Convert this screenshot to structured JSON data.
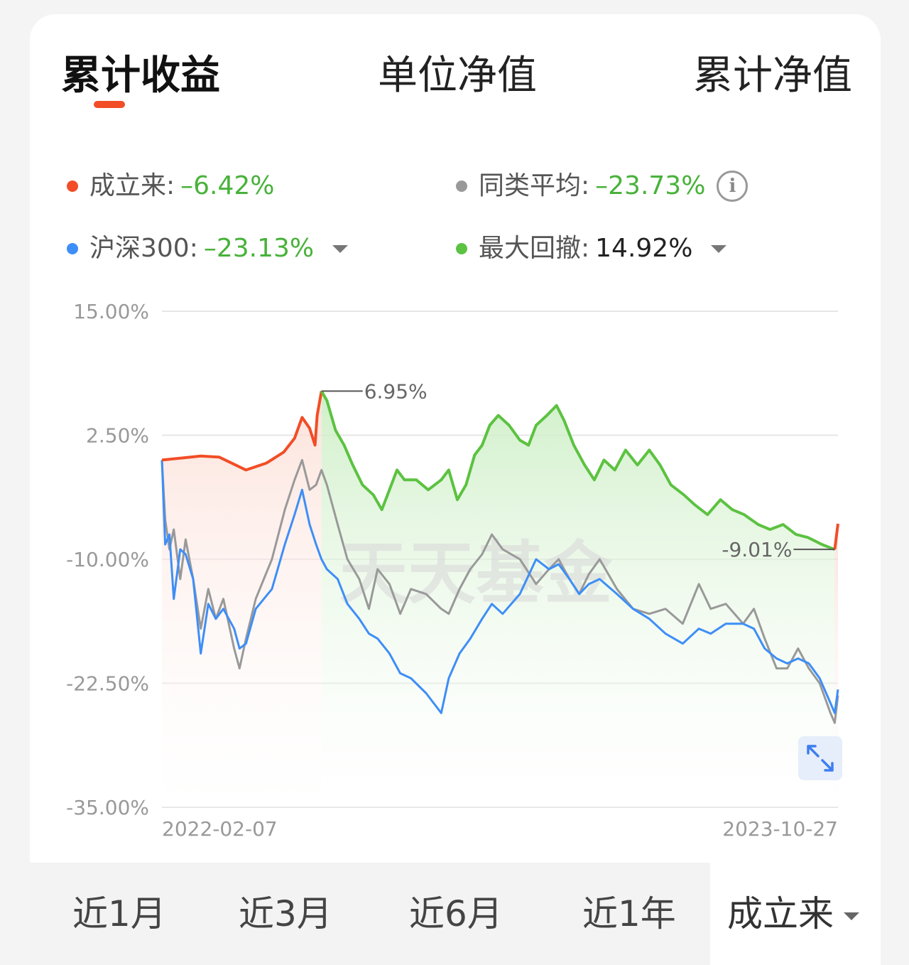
{
  "tabs": [
    {
      "label": "累计收益",
      "active": true
    },
    {
      "label": "单位净值",
      "active": false
    },
    {
      "label": "累计净值",
      "active": false
    }
  ],
  "legend": {
    "fund": {
      "label": "成立来:",
      "value": "–6.42%",
      "color": "#f24d26"
    },
    "peer": {
      "label": "同类平均:",
      "value": "–23.73%",
      "color": "#999999",
      "icon": "info-icon"
    },
    "index": {
      "label": "沪深300:",
      "value": "–23.13%",
      "color": "#3e8ef7",
      "icon": "caret-down-icon"
    },
    "drawdown": {
      "label": "最大回撤:",
      "value": "14.92%",
      "color": "#5cc241",
      "icon": "caret-down-icon"
    }
  },
  "watermark": "天天基金",
  "expand_icon": "expand-icon",
  "range": {
    "options": [
      "近1月",
      "近3月",
      "近6月",
      "近1年"
    ],
    "selected": "成立来",
    "icon": "caret-down-icon"
  },
  "chart_data": {
    "type": "line",
    "y_ticks": [
      "15.00%",
      "2.50%",
      "-10.00%",
      "-22.50%",
      "-35.00%"
    ],
    "ylim": [
      -35,
      15
    ],
    "x_labels": [
      "2022-02-07",
      "2023-10-27"
    ],
    "xlim": [
      "2022-02-07",
      "2023-10-27"
    ],
    "grid": true,
    "annotations": [
      {
        "text": "6.95%",
        "date": "2022-07-05",
        "value": 6.95
      },
      {
        "text": "-9.01%",
        "date": "2023-10-24",
        "value": -9.01
      }
    ],
    "drawdown_period": {
      "start": "2022-07-05",
      "end": "2023-10-24"
    },
    "series": [
      {
        "key": "fund",
        "color": "#f24d26",
        "drawdown_color": "#5cc241",
        "points": [
          [
            "2022-02-07",
            0
          ],
          [
            "2022-02-25",
            0.2
          ],
          [
            "2022-03-15",
            0.4
          ],
          [
            "2022-04-01",
            0.3
          ],
          [
            "2022-04-26",
            -1.0
          ],
          [
            "2022-05-15",
            -0.3
          ],
          [
            "2022-05-31",
            0.8
          ],
          [
            "2022-06-10",
            2.2
          ],
          [
            "2022-06-17",
            4.3
          ],
          [
            "2022-06-24",
            3.2
          ],
          [
            "2022-06-29",
            1.5
          ],
          [
            "2022-07-01",
            4.5
          ],
          [
            "2022-07-05",
            6.95
          ],
          [
            "2022-07-10",
            6.0
          ],
          [
            "2022-07-18",
            3.0
          ],
          [
            "2022-07-26",
            1.5
          ],
          [
            "2022-08-03",
            -0.5
          ],
          [
            "2022-08-12",
            -2.5
          ],
          [
            "2022-08-22",
            -3.5
          ],
          [
            "2022-08-30",
            -5.0
          ],
          [
            "2022-09-06",
            -3.0
          ],
          [
            "2022-09-13",
            -1.0
          ],
          [
            "2022-09-20",
            -2.0
          ],
          [
            "2022-10-01",
            -2.0
          ],
          [
            "2022-10-12",
            -3.0
          ],
          [
            "2022-10-24",
            -2.0
          ],
          [
            "2022-10-31",
            -1.0
          ],
          [
            "2022-11-08",
            -4.0
          ],
          [
            "2022-11-16",
            -2.5
          ],
          [
            "2022-11-24",
            0.5
          ],
          [
            "2022-12-01",
            1.5
          ],
          [
            "2022-12-08",
            3.5
          ],
          [
            "2022-12-16",
            4.5
          ],
          [
            "2022-12-26",
            3.5
          ],
          [
            "2023-01-05",
            2.0
          ],
          [
            "2023-01-13",
            1.5
          ],
          [
            "2023-01-20",
            3.5
          ],
          [
            "2023-01-30",
            4.5
          ],
          [
            "2023-02-08",
            5.5
          ],
          [
            "2023-02-15",
            4.0
          ],
          [
            "2023-02-24",
            1.5
          ],
          [
            "2023-03-06",
            -0.5
          ],
          [
            "2023-03-15",
            -2.0
          ],
          [
            "2023-03-24",
            0
          ],
          [
            "2023-04-03",
            -1.0
          ],
          [
            "2023-04-13",
            1.0
          ],
          [
            "2023-04-24",
            -0.5
          ],
          [
            "2023-05-05",
            1.0
          ],
          [
            "2023-05-15",
            -0.5
          ],
          [
            "2023-05-25",
            -2.5
          ],
          [
            "2023-06-06",
            -3.5
          ],
          [
            "2023-06-16",
            -4.5
          ],
          [
            "2023-06-28",
            -5.5
          ],
          [
            "2023-07-10",
            -4.0
          ],
          [
            "2023-07-21",
            -5.0
          ],
          [
            "2023-08-01",
            -5.5
          ],
          [
            "2023-08-14",
            -6.5
          ],
          [
            "2023-08-25",
            -7.0
          ],
          [
            "2023-09-06",
            -6.5
          ],
          [
            "2023-09-18",
            -7.5
          ],
          [
            "2023-09-29",
            -7.8
          ],
          [
            "2023-10-12",
            -8.5
          ],
          [
            "2023-10-24",
            -9.01
          ],
          [
            "2023-10-27",
            -6.42
          ]
        ]
      },
      {
        "key": "peer",
        "color": "#999999",
        "points": [
          [
            "2022-02-07",
            0
          ],
          [
            "2022-02-10",
            -6.0
          ],
          [
            "2022-02-14",
            -9.0
          ],
          [
            "2022-02-18",
            -7.0
          ],
          [
            "2022-02-24",
            -12.0
          ],
          [
            "2022-03-01",
            -8.0
          ],
          [
            "2022-03-08",
            -12.0
          ],
          [
            "2022-03-15",
            -17.0
          ],
          [
            "2022-03-22",
            -13.0
          ],
          [
            "2022-03-29",
            -16.0
          ],
          [
            "2022-04-05",
            -14.0
          ],
          [
            "2022-04-15",
            -19.0
          ],
          [
            "2022-04-20",
            -21.0
          ],
          [
            "2022-04-26",
            -18.0
          ],
          [
            "2022-05-05",
            -14.0
          ],
          [
            "2022-05-20",
            -10.0
          ],
          [
            "2022-06-01",
            -5.0
          ],
          [
            "2022-06-10",
            -2.0
          ],
          [
            "2022-06-17",
            0
          ],
          [
            "2022-06-24",
            -3.0
          ],
          [
            "2022-06-30",
            -2.5
          ],
          [
            "2022-07-05",
            -1.0
          ],
          [
            "2022-07-10",
            -2.5
          ],
          [
            "2022-07-20",
            -6.5
          ],
          [
            "2022-07-29",
            -10.0
          ],
          [
            "2022-08-09",
            -12.0
          ],
          [
            "2022-08-18",
            -15.0
          ],
          [
            "2022-08-26",
            -11.0
          ],
          [
            "2022-09-06",
            -12.5
          ],
          [
            "2022-09-16",
            -15.5
          ],
          [
            "2022-09-26",
            -13.0
          ],
          [
            "2022-10-10",
            -13.5
          ],
          [
            "2022-10-24",
            -15.0
          ],
          [
            "2022-10-31",
            -15.5
          ],
          [
            "2022-11-10",
            -13.0
          ],
          [
            "2022-11-20",
            -11.0
          ],
          [
            "2022-12-01",
            -9.5
          ],
          [
            "2022-12-10",
            -7.5
          ],
          [
            "2022-12-20",
            -9.0
          ],
          [
            "2023-01-05",
            -10.0
          ],
          [
            "2023-01-20",
            -12.5
          ],
          [
            "2023-02-01",
            -11.0
          ],
          [
            "2023-02-10",
            -10.0
          ],
          [
            "2023-02-20",
            -12.0
          ],
          [
            "2023-03-01",
            -13.5
          ],
          [
            "2023-03-10",
            -11.5
          ],
          [
            "2023-03-20",
            -10.0
          ],
          [
            "2023-04-05",
            -13.0
          ],
          [
            "2023-04-20",
            -15.0
          ],
          [
            "2023-05-05",
            -15.5
          ],
          [
            "2023-05-20",
            -15.0
          ],
          [
            "2023-06-05",
            -16.5
          ],
          [
            "2023-06-20",
            -12.5
          ],
          [
            "2023-07-01",
            -15.0
          ],
          [
            "2023-07-15",
            -14.5
          ],
          [
            "2023-07-31",
            -16.5
          ],
          [
            "2023-08-10",
            -15.0
          ],
          [
            "2023-08-20",
            -18.0
          ],
          [
            "2023-08-31",
            -21.0
          ],
          [
            "2023-09-10",
            -21.0
          ],
          [
            "2023-09-20",
            -19.0
          ],
          [
            "2023-09-30",
            -21.0
          ],
          [
            "2023-10-10",
            -22.5
          ],
          [
            "2023-10-20",
            -25.5
          ],
          [
            "2023-10-24",
            -26.5
          ],
          [
            "2023-10-27",
            -23.73
          ]
        ]
      },
      {
        "key": "index",
        "color": "#3e8ef7",
        "points": [
          [
            "2022-02-07",
            0
          ],
          [
            "2022-02-10",
            -8.5
          ],
          [
            "2022-02-14",
            -7.5
          ],
          [
            "2022-02-18",
            -14.0
          ],
          [
            "2022-02-24",
            -9.0
          ],
          [
            "2022-03-01",
            -9.5
          ],
          [
            "2022-03-08",
            -12.0
          ],
          [
            "2022-03-15",
            -19.5
          ],
          [
            "2022-03-22",
            -14.5
          ],
          [
            "2022-03-29",
            -16.0
          ],
          [
            "2022-04-05",
            -15.0
          ],
          [
            "2022-04-15",
            -17.0
          ],
          [
            "2022-04-20",
            -19.0
          ],
          [
            "2022-04-26",
            -18.5
          ],
          [
            "2022-05-05",
            -15.0
          ],
          [
            "2022-05-20",
            -13.0
          ],
          [
            "2022-06-01",
            -8.5
          ],
          [
            "2022-06-10",
            -5.5
          ],
          [
            "2022-06-17",
            -3.0
          ],
          [
            "2022-06-24",
            -6.5
          ],
          [
            "2022-06-30",
            -8.5
          ],
          [
            "2022-07-05",
            -10.0
          ],
          [
            "2022-07-10",
            -11.0
          ],
          [
            "2022-07-20",
            -12.0
          ],
          [
            "2022-07-29",
            -14.5
          ],
          [
            "2022-08-09",
            -16.0
          ],
          [
            "2022-08-18",
            -17.5
          ],
          [
            "2022-08-26",
            -18.0
          ],
          [
            "2022-09-06",
            -19.5
          ],
          [
            "2022-09-16",
            -21.5
          ],
          [
            "2022-09-26",
            -22.0
          ],
          [
            "2022-10-10",
            -23.5
          ],
          [
            "2022-10-24",
            -25.5
          ],
          [
            "2022-10-31",
            -22.0
          ],
          [
            "2022-11-10",
            -19.5
          ],
          [
            "2022-11-20",
            -18.0
          ],
          [
            "2022-12-01",
            -16.0
          ],
          [
            "2022-12-10",
            -14.5
          ],
          [
            "2022-12-20",
            -15.5
          ],
          [
            "2023-01-05",
            -13.5
          ],
          [
            "2023-01-20",
            -10.0
          ],
          [
            "2023-02-01",
            -11.0
          ],
          [
            "2023-02-10",
            -10.5
          ],
          [
            "2023-02-20",
            -12.0
          ],
          [
            "2023-03-01",
            -13.5
          ],
          [
            "2023-03-10",
            -12.5
          ],
          [
            "2023-03-20",
            -12.0
          ],
          [
            "2023-04-05",
            -13.5
          ],
          [
            "2023-04-20",
            -15.0
          ],
          [
            "2023-05-05",
            -16.0
          ],
          [
            "2023-05-20",
            -17.5
          ],
          [
            "2023-06-05",
            -18.5
          ],
          [
            "2023-06-20",
            -17.0
          ],
          [
            "2023-07-01",
            -17.5
          ],
          [
            "2023-07-15",
            -16.5
          ],
          [
            "2023-07-31",
            -16.5
          ],
          [
            "2023-08-10",
            -17.0
          ],
          [
            "2023-08-20",
            -19.0
          ],
          [
            "2023-08-31",
            -20.0
          ],
          [
            "2023-09-10",
            -20.5
          ],
          [
            "2023-09-20",
            -20.0
          ],
          [
            "2023-09-30",
            -20.5
          ],
          [
            "2023-10-10",
            -22.0
          ],
          [
            "2023-10-20",
            -24.5
          ],
          [
            "2023-10-24",
            -25.5
          ],
          [
            "2023-10-27",
            -23.13
          ]
        ]
      }
    ]
  }
}
